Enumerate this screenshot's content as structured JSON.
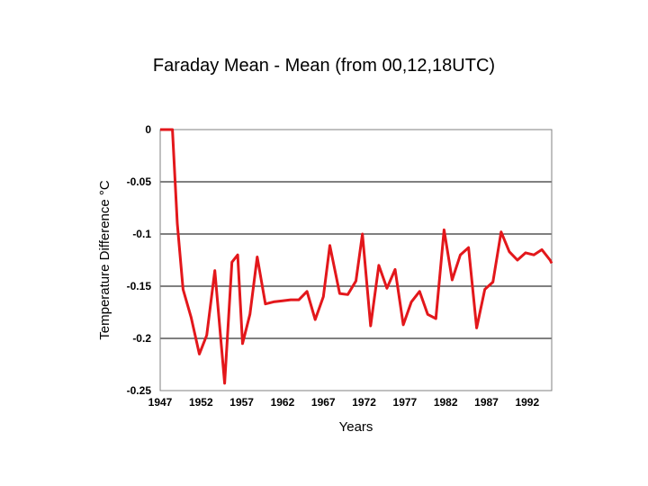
{
  "chart_data": {
    "type": "line",
    "title": "Faraday Mean - Mean (from 00,12,18UTC)",
    "xlabel": "Years",
    "ylabel": "Temperature Difference °C",
    "xlim": [
      1947,
      1995
    ],
    "ylim": [
      -0.25,
      0
    ],
    "x_ticks": [
      1947,
      1952,
      1957,
      1962,
      1967,
      1972,
      1977,
      1982,
      1987,
      1992
    ],
    "y_ticks": [
      0,
      -0.05,
      -0.1,
      -0.15,
      -0.2,
      -0.25
    ],
    "y_tick_labels": [
      "0",
      "-0.05",
      "-0.1",
      "-0.15",
      "-0.2",
      "-0.25"
    ],
    "grid": "horizontal",
    "legend": "none",
    "series": [
      {
        "color": "#e3171b",
        "x": [
          1947.0,
          1948.5,
          1949.1,
          1949.8,
          1950.8,
          1951.8,
          1952.7,
          1953.7,
          1954.9,
          1955.8,
          1956.5,
          1957.1,
          1958.0,
          1958.9,
          1959.9,
          1960.9,
          1962.0,
          1963.0,
          1964.0,
          1965.0,
          1966.0,
          1967.0,
          1967.8,
          1969.0,
          1970.0,
          1971.0,
          1971.8,
          1972.8,
          1973.8,
          1974.8,
          1975.8,
          1976.8,
          1977.8,
          1978.8,
          1979.8,
          1980.8,
          1981.8,
          1982.8,
          1983.8,
          1984.8,
          1985.8,
          1986.8,
          1987.8,
          1988.8,
          1989.8,
          1990.8,
          1991.8,
          1992.8,
          1993.8,
          1994.8,
          1995.0
        ],
        "y": [
          0.0,
          0.0,
          -0.09,
          -0.153,
          -0.18,
          -0.215,
          -0.197,
          -0.135,
          -0.243,
          -0.127,
          -0.12,
          -0.205,
          -0.177,
          -0.122,
          -0.167,
          -0.165,
          -0.164,
          -0.163,
          -0.163,
          -0.155,
          -0.182,
          -0.16,
          -0.111,
          -0.157,
          -0.158,
          -0.145,
          -0.1,
          -0.188,
          -0.13,
          -0.152,
          -0.134,
          -0.187,
          -0.165,
          -0.155,
          -0.177,
          -0.181,
          -0.096,
          -0.144,
          -0.12,
          -0.113,
          -0.19,
          -0.153,
          -0.146,
          -0.098,
          -0.117,
          -0.125,
          -0.118,
          -0.12,
          -0.115,
          -0.125,
          -0.128
        ]
      }
    ]
  }
}
